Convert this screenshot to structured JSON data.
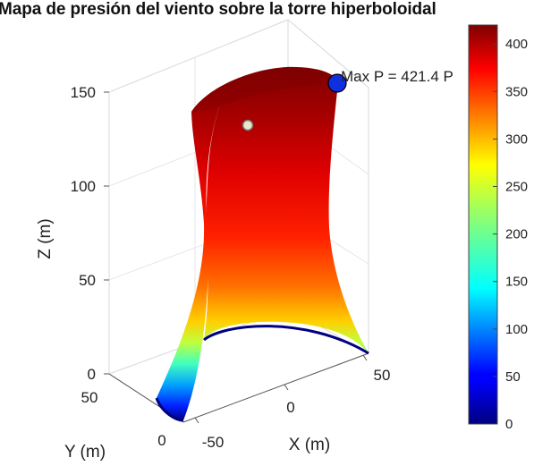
{
  "chart_data": {
    "type": "surface",
    "title": "Mapa de presión del viento sobre la torre hiperboloidal",
    "xlabel": "X (m)",
    "ylabel": "Y (m)",
    "zlabel": "Z (m)",
    "x_ticks": [
      "-50",
      "0",
      "50"
    ],
    "y_ticks": [
      "0",
      "50"
    ],
    "z_ticks": [
      "0",
      "50",
      "100",
      "150"
    ],
    "zlim": [
      0,
      150
    ],
    "colorbar": {
      "colormap": "jet",
      "range": [
        0,
        420
      ],
      "ticks": [
        "0",
        "50",
        "100",
        "150",
        "200",
        "250",
        "300",
        "350",
        "400"
      ]
    },
    "annotation": {
      "text": "Max P = 421.4 P",
      "value": 421.4
    },
    "grid": true
  },
  "colors": {
    "max_marker": "#1030e0",
    "inner_marker": "#e8e8c8"
  }
}
